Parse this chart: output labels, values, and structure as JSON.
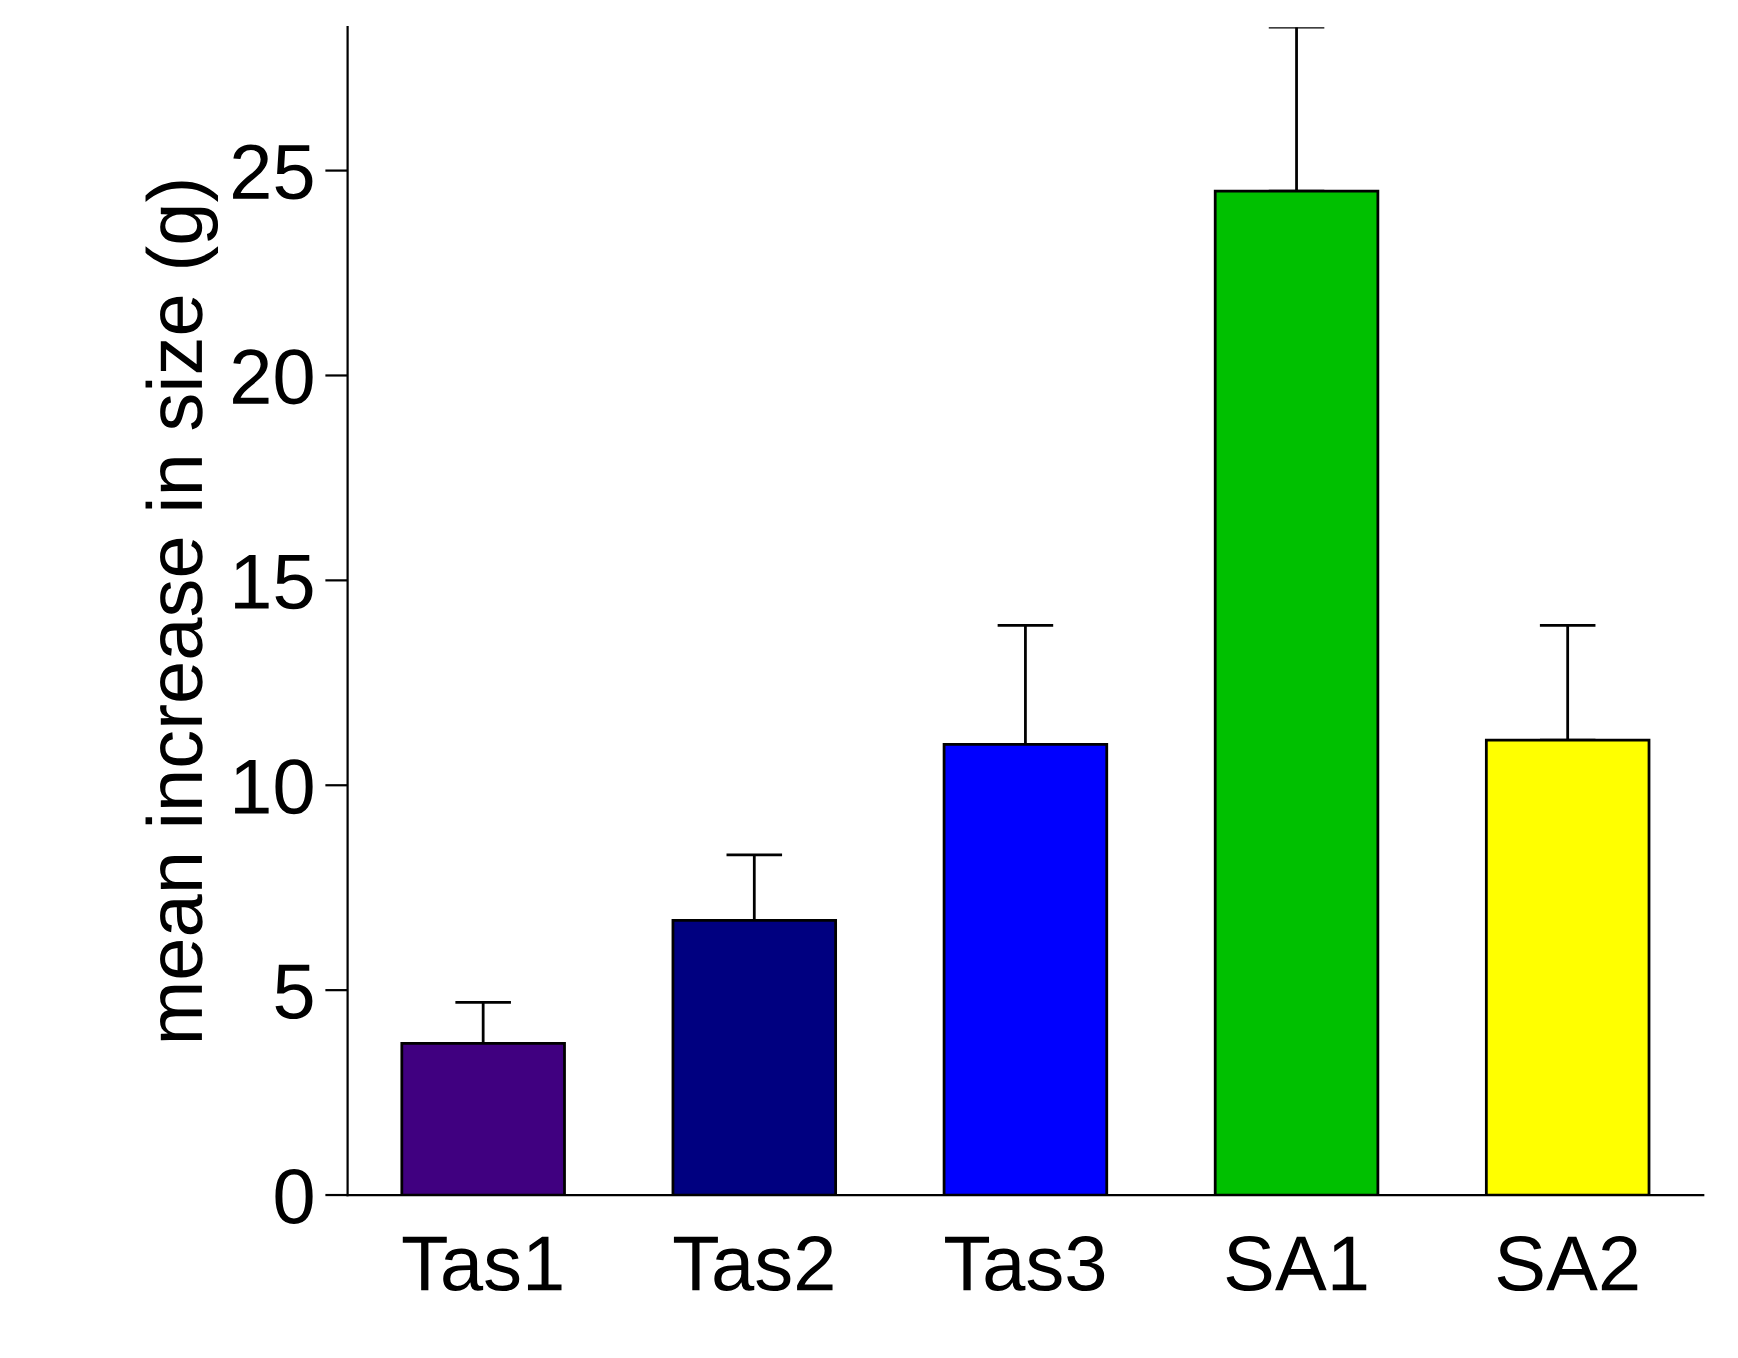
{
  "chart_data": {
    "type": "bar",
    "ylabel": "mean increase in size (g)",
    "categories": [
      "Tas1",
      "Tas2",
      "Tas3",
      "SA1",
      "SA2"
    ],
    "values": [
      3.7,
      6.7,
      11.0,
      24.5,
      11.1
    ],
    "colors": [
      "#400080",
      "#000080",
      "#0000ff",
      "#00c000",
      "#ffff00"
    ],
    "errors": [
      [
        3.7,
        4.7
      ],
      [
        6.7,
        8.3
      ],
      [
        11.0,
        13.9
      ],
      [
        24.5,
        28.5
      ],
      [
        11.1,
        13.9
      ]
    ],
    "ylim": [
      0,
      28.5
    ],
    "yticks": [
      0,
      5,
      10,
      15,
      20,
      25
    ],
    "grid": false,
    "legend": false
  }
}
